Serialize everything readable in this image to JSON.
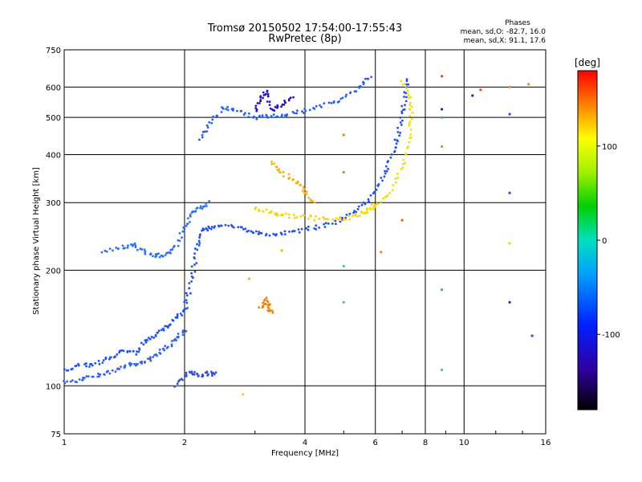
{
  "chart_data": {
    "type": "scatter",
    "title": "Tromsø 20150502 17:54:00-17:55:43",
    "subtitle": "RwPretec (8p)",
    "xlabel": "Frequency [MHz]",
    "ylabel": "Stationary phase Virtual Height [km]",
    "x_scale": "log",
    "y_scale": "log",
    "xlim": [
      1,
      16
    ],
    "ylim": [
      75,
      750
    ],
    "grid": true,
    "x_ticks": [
      1,
      2,
      4,
      6,
      8,
      10,
      16
    ],
    "x_tick_labels": [
      "1",
      "2",
      "4",
      "6",
      "8",
      "10",
      "16"
    ],
    "y_ticks": [
      75,
      100,
      200,
      300,
      400,
      500,
      600,
      750
    ],
    "y_tick_labels": [
      "75",
      "100",
      "200",
      "300",
      "400",
      "500",
      "600",
      "750"
    ],
    "phase_stats": {
      "title": "Phases",
      "line_o": "mean, sd,O: -82.7, 16.0",
      "line_x": "mean, sd,X:  91.1, 17.6"
    },
    "colorbar": {
      "label": "[deg]",
      "range": [
        -180,
        180
      ],
      "ticks": [
        100,
        0,
        -100
      ],
      "tick_labels": [
        "100",
        "0",
        "-100"
      ]
    },
    "traces": [
      {
        "name": "",
        "phase": -100,
        "color": "#1a50ff",
        "points": [
          [
            1.0,
            110
          ],
          [
            1.1,
            113
          ],
          [
            1.2,
            114
          ],
          [
            1.3,
            118
          ],
          [
            1.4,
            124
          ],
          [
            1.5,
            122
          ],
          [
            1.6,
            130
          ],
          [
            1.7,
            136
          ],
          [
            1.8,
            142
          ],
          [
            1.9,
            150
          ],
          [
            2.0,
            157
          ],
          [
            2.05,
            175
          ],
          [
            2.1,
            200
          ],
          [
            2.15,
            230
          ],
          [
            2.2,
            252
          ],
          [
            2.3,
            258
          ],
          [
            2.5,
            262
          ],
          [
            2.8,
            258
          ],
          [
            3.0,
            250
          ],
          [
            3.3,
            248
          ],
          [
            3.6,
            250
          ],
          [
            4.0,
            255
          ],
          [
            4.5,
            262
          ],
          [
            5.0,
            272
          ],
          [
            5.5,
            290
          ],
          [
            6.0,
            320
          ],
          [
            6.3,
            355
          ],
          [
            6.6,
            400
          ],
          [
            6.8,
            440
          ],
          [
            7.0,
            500
          ],
          [
            7.1,
            560
          ],
          [
            7.2,
            630
          ]
        ]
      },
      {
        "name": "",
        "phase": -95,
        "color": "#3060ff",
        "points": [
          [
            1.0,
            102
          ],
          [
            1.1,
            104
          ],
          [
            1.2,
            106
          ],
          [
            1.3,
            108
          ],
          [
            1.4,
            112
          ],
          [
            1.5,
            114
          ],
          [
            1.6,
            116
          ],
          [
            1.7,
            120
          ],
          [
            1.8,
            126
          ],
          [
            1.9,
            132
          ],
          [
            2.0,
            140
          ]
        ]
      },
      {
        "name": "",
        "phase": -85,
        "color": "#2a70ff",
        "points": [
          [
            1.25,
            225
          ],
          [
            1.4,
            230
          ],
          [
            1.5,
            232
          ],
          [
            1.6,
            222
          ],
          [
            1.7,
            218
          ],
          [
            1.8,
            220
          ],
          [
            1.9,
            230
          ],
          [
            2.0,
            260
          ],
          [
            2.1,
            280
          ],
          [
            2.2,
            290
          ],
          [
            2.3,
            300
          ]
        ]
      },
      {
        "name": "",
        "phase": -100,
        "color": "#2060ff",
        "points": [
          [
            2.2,
            440
          ],
          [
            2.3,
            480
          ],
          [
            2.5,
            530
          ],
          [
            2.7,
            520
          ],
          [
            3.0,
            500
          ],
          [
            3.3,
            505
          ],
          [
            3.6,
            510
          ],
          [
            4.0,
            520
          ],
          [
            4.5,
            540
          ],
          [
            5.0,
            560
          ],
          [
            5.5,
            600
          ],
          [
            5.8,
            640
          ]
        ]
      },
      {
        "name": "",
        "phase": -120,
        "color": "#2a10d0",
        "points": [
          [
            3.0,
            520
          ],
          [
            3.1,
            560
          ],
          [
            3.2,
            590
          ],
          [
            3.3,
            520
          ],
          [
            3.5,
            540
          ],
          [
            3.7,
            560
          ]
        ]
      },
      {
        "name": "",
        "phase": 110,
        "color": "#ffd000",
        "points": [
          [
            3.0,
            290
          ],
          [
            3.3,
            282
          ],
          [
            3.6,
            278
          ],
          [
            4.0,
            275
          ],
          [
            4.5,
            272
          ],
          [
            5.0,
            272
          ],
          [
            5.5,
            280
          ],
          [
            6.0,
            300
          ]
        ]
      },
      {
        "name": "",
        "phase": 130,
        "color": "#ffb000",
        "points": [
          [
            3.3,
            380
          ],
          [
            3.5,
            360
          ],
          [
            3.8,
            340
          ],
          [
            4.0,
            320
          ],
          [
            4.2,
            300
          ]
        ]
      },
      {
        "name": "",
        "phase": 120,
        "color": "#f0e000",
        "points": [
          [
            5.5,
            280
          ],
          [
            6.0,
            290
          ],
          [
            6.5,
            320
          ],
          [
            7.0,
            370
          ],
          [
            7.3,
            430
          ],
          [
            7.4,
            500
          ],
          [
            7.3,
            560
          ],
          [
            7.0,
            620
          ]
        ]
      },
      {
        "name": "",
        "phase": -110,
        "color": "#3050e0",
        "points": [
          [
            1.9,
            100
          ],
          [
            2.0,
            107
          ],
          [
            2.1,
            108
          ],
          [
            2.2,
            106
          ],
          [
            2.3,
            108
          ],
          [
            2.4,
            107
          ]
        ]
      },
      {
        "name": "",
        "phase": 150,
        "color": "#ff8000",
        "points": [
          [
            3.1,
            160
          ],
          [
            3.2,
            165
          ],
          [
            3.3,
            155
          ],
          [
            3.2,
            170
          ]
        ]
      }
    ],
    "outliers": [
      {
        "x": 8.8,
        "y": 640,
        "color": "#ff4000"
      },
      {
        "x": 11.0,
        "y": 590,
        "color": "#ff4000"
      },
      {
        "x": 13.0,
        "y": 600,
        "color": "#ff8000"
      },
      {
        "x": 14.5,
        "y": 610,
        "color": "#ff8000"
      },
      {
        "x": 8.8,
        "y": 525,
        "color": "#2020d0"
      },
      {
        "x": 8.8,
        "y": 500,
        "color": "#30a0ff"
      },
      {
        "x": 13.0,
        "y": 510,
        "color": "#1a50ff"
      },
      {
        "x": 10.5,
        "y": 570,
        "color": "#2020d0"
      },
      {
        "x": 8.8,
        "y": 420,
        "color": "#ff8000"
      },
      {
        "x": 13.0,
        "y": 318,
        "color": "#1a50ff"
      },
      {
        "x": 13.0,
        "y": 235,
        "color": "#ffd000"
      },
      {
        "x": 8.8,
        "y": 178,
        "color": "#30a0ff"
      },
      {
        "x": 13.0,
        "y": 165,
        "color": "#2020d0"
      },
      {
        "x": 14.8,
        "y": 135,
        "color": "#1a50ff"
      },
      {
        "x": 8.8,
        "y": 110,
        "color": "#30c0ff"
      },
      {
        "x": 5.0,
        "y": 165,
        "color": "#30c0ff"
      },
      {
        "x": 5.0,
        "y": 205,
        "color": "#30c0ff"
      },
      {
        "x": 5.0,
        "y": 450,
        "color": "#ff8000"
      },
      {
        "x": 5.0,
        "y": 360,
        "color": "#ff8000"
      },
      {
        "x": 7.0,
        "y": 270,
        "color": "#ff6000"
      },
      {
        "x": 6.2,
        "y": 223,
        "color": "#ff8000"
      },
      {
        "x": 2.8,
        "y": 95,
        "color": "#ffd000"
      },
      {
        "x": 2.9,
        "y": 190,
        "color": "#ffb000"
      },
      {
        "x": 3.5,
        "y": 225,
        "color": "#ffb000"
      }
    ]
  }
}
